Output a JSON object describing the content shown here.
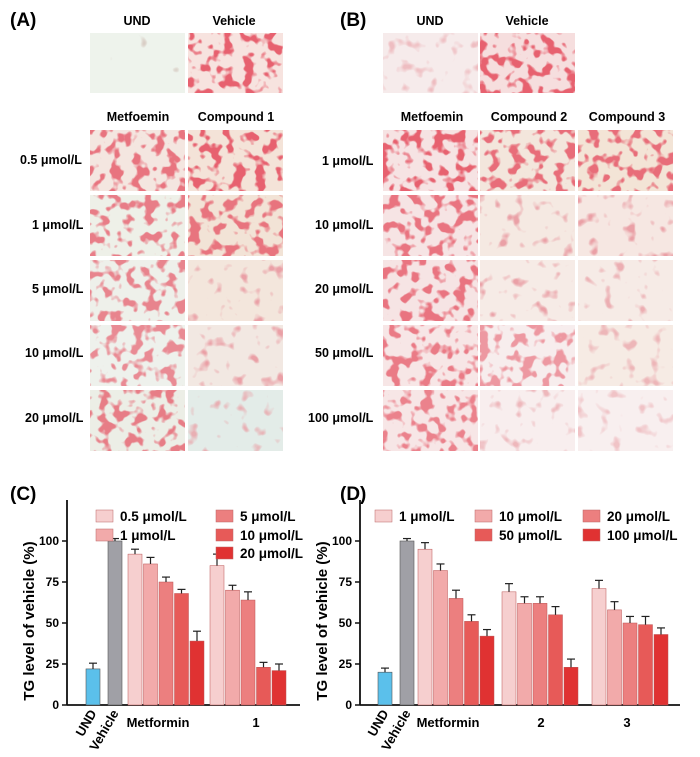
{
  "panels": {
    "A": "(A)",
    "B": "(B)",
    "C": "(C)",
    "D": "(D)"
  },
  "micrographs": {
    "A": {
      "top_headers": [
        "UND",
        "Vehicle"
      ],
      "headers": [
        "Metfoemin",
        "Compound  1"
      ],
      "rows": [
        "0.5 μmol/L",
        "1 μmol/L",
        "5 μmol/L",
        "10 μmol/L",
        "20 μmol/L"
      ]
    },
    "B": {
      "top_headers": [
        "UND",
        "Vehicle"
      ],
      "headers": [
        "Metfoemin",
        "Compound  2",
        "Compound  3"
      ],
      "rows": [
        "1 μmol/L",
        "10 μmol/L",
        "20 μmol/L",
        "50 μmol/L",
        "100 μmol/L"
      ]
    }
  },
  "colors": {
    "und": "#5bc0eb",
    "vehicle": "#a0a0a6",
    "shades": [
      "#f6cfcf",
      "#f2aaaa",
      "#ec7f7f",
      "#e75a58",
      "#e03232"
    ]
  },
  "chart_data": [
    {
      "type": "bar",
      "panel": "C",
      "ylabel": "TG level of vehicle (%)",
      "ylim": [
        0,
        125
      ],
      "yticks": [
        0,
        25,
        50,
        75,
        100
      ],
      "controls": [
        {
          "name": "UND",
          "value": 22,
          "error": 3.5
        },
        {
          "name": "Vehicle",
          "value": 100,
          "error": 1.5
        }
      ],
      "categories": [
        "Metformin",
        "1"
      ],
      "series": [
        {
          "name": "0.5 μmol/L",
          "values": [
            92,
            85
          ],
          "errors": [
            3,
            7
          ]
        },
        {
          "name": "1 μmol/L",
          "values": [
            86,
            70
          ],
          "errors": [
            4,
            3
          ]
        },
        {
          "name": "5 μmol/L",
          "values": [
            75,
            64
          ],
          "errors": [
            3,
            5
          ]
        },
        {
          "name": "10 μmol/L",
          "values": [
            68,
            23
          ],
          "errors": [
            2.5,
            3
          ]
        },
        {
          "name": "20 μmol/L",
          "values": [
            39,
            21
          ],
          "errors": [
            6,
            4
          ]
        }
      ]
    },
    {
      "type": "bar",
      "panel": "D",
      "ylabel": "TG level of vehicle (%)",
      "ylim": [
        0,
        125
      ],
      "yticks": [
        0,
        25,
        50,
        75,
        100
      ],
      "controls": [
        {
          "name": "UND",
          "value": 20,
          "error": 2.5
        },
        {
          "name": "Vehicle",
          "value": 100,
          "error": 1.5
        }
      ],
      "categories": [
        "Metformin",
        "2",
        "3"
      ],
      "series": [
        {
          "name": "1 μmol/L",
          "values": [
            95,
            69,
            71
          ],
          "errors": [
            4,
            5,
            5
          ]
        },
        {
          "name": "10 μmol/L",
          "values": [
            82,
            62,
            58
          ],
          "errors": [
            4,
            4,
            5
          ]
        },
        {
          "name": "20 μmol/L",
          "values": [
            65,
            62,
            50
          ],
          "errors": [
            5,
            4,
            4
          ]
        },
        {
          "name": "50 μmol/L",
          "values": [
            51,
            55,
            49
          ],
          "errors": [
            4,
            5,
            5
          ]
        },
        {
          "name": "100 μmol/L",
          "values": [
            42,
            23,
            43
          ],
          "errors": [
            4,
            5,
            4
          ]
        }
      ]
    }
  ]
}
